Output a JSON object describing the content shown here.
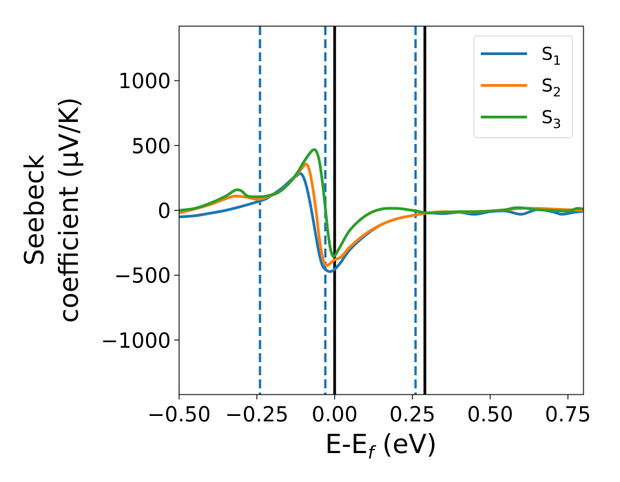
{
  "chart_data": {
    "type": "line",
    "xlabel": {
      "main": "E-E",
      "sub": "f",
      "unit": " (eV)"
    },
    "ylabel": {
      "line1": "Seebeck",
      "line2": "coefficient  (μV/K)"
    },
    "xlim": [
      -0.5,
      0.8
    ],
    "ylim": [
      -1420,
      1420
    ],
    "x_ticks": [
      -0.5,
      -0.25,
      0.0,
      0.25,
      0.5,
      0.75
    ],
    "x_tick_labels": [
      "−0.50",
      "−0.25",
      "0.00",
      "0.25",
      "0.50",
      "0.75"
    ],
    "y_ticks": [
      -1000,
      -500,
      0,
      500,
      1000
    ],
    "y_tick_labels": [
      "−1000",
      "−500",
      "0",
      "500",
      "1000"
    ],
    "grid": false,
    "legend_position": "top-right",
    "vlines": [
      {
        "x": -0.24,
        "style": "dashed",
        "color": "#1f77b4"
      },
      {
        "x": -0.03,
        "style": "dashed",
        "color": "#1f77b4"
      },
      {
        "x": 0.26,
        "style": "dashed",
        "color": "#1f77b4"
      },
      {
        "x": 0.0,
        "style": "solid",
        "color": "#000000"
      },
      {
        "x": 0.29,
        "style": "solid",
        "color": "#000000"
      }
    ],
    "series": [
      {
        "name": "S",
        "sub": "1",
        "color": "#1f77b4",
        "points": [
          [
            -0.5,
            -50
          ],
          [
            -0.45,
            -42
          ],
          [
            -0.4,
            -22
          ],
          [
            -0.35,
            0
          ],
          [
            -0.3,
            30
          ],
          [
            -0.25,
            65
          ],
          [
            -0.22,
            90
          ],
          [
            -0.2,
            120
          ],
          [
            -0.17,
            170
          ],
          [
            -0.14,
            235
          ],
          [
            -0.12,
            270
          ],
          [
            -0.11,
            285
          ],
          [
            -0.1,
            255
          ],
          [
            -0.09,
            180
          ],
          [
            -0.08,
            70
          ],
          [
            -0.07,
            -60
          ],
          [
            -0.06,
            -200
          ],
          [
            -0.05,
            -330
          ],
          [
            -0.04,
            -420
          ],
          [
            -0.03,
            -455
          ],
          [
            -0.02,
            -470
          ],
          [
            -0.01,
            -470
          ],
          [
            0.0,
            -455
          ],
          [
            0.02,
            -400
          ],
          [
            0.05,
            -300
          ],
          [
            0.1,
            -190
          ],
          [
            0.15,
            -110
          ],
          [
            0.2,
            -65
          ],
          [
            0.25,
            -40
          ],
          [
            0.3,
            -20
          ],
          [
            0.35,
            -25
          ],
          [
            0.4,
            -15
          ],
          [
            0.45,
            -30
          ],
          [
            0.5,
            -10
          ],
          [
            0.55,
            -5
          ],
          [
            0.6,
            -30
          ],
          [
            0.65,
            5
          ],
          [
            0.7,
            -10
          ],
          [
            0.73,
            -30
          ],
          [
            0.77,
            -15
          ],
          [
            0.8,
            -5
          ]
        ]
      },
      {
        "name": "S",
        "sub": "2",
        "color": "#ff7f0e",
        "points": [
          [
            -0.5,
            -20
          ],
          [
            -0.45,
            10
          ],
          [
            -0.4,
            45
          ],
          [
            -0.35,
            90
          ],
          [
            -0.32,
            110
          ],
          [
            -0.28,
            100
          ],
          [
            -0.25,
            85
          ],
          [
            -0.22,
            100
          ],
          [
            -0.18,
            140
          ],
          [
            -0.15,
            200
          ],
          [
            -0.12,
            280
          ],
          [
            -0.1,
            340
          ],
          [
            -0.09,
            355
          ],
          [
            -0.08,
            300
          ],
          [
            -0.07,
            170
          ],
          [
            -0.06,
            0
          ],
          [
            -0.05,
            -200
          ],
          [
            -0.04,
            -350
          ],
          [
            -0.03,
            -420
          ],
          [
            -0.02,
            -420
          ],
          [
            -0.01,
            -400
          ],
          [
            0.0,
            -380
          ],
          [
            0.02,
            -360
          ],
          [
            0.05,
            -280
          ],
          [
            0.1,
            -180
          ],
          [
            0.15,
            -110
          ],
          [
            0.2,
            -65
          ],
          [
            0.25,
            -40
          ],
          [
            0.3,
            -20
          ],
          [
            0.35,
            -10
          ],
          [
            0.4,
            -15
          ],
          [
            0.45,
            -10
          ],
          [
            0.5,
            -5
          ],
          [
            0.55,
            5
          ],
          [
            0.6,
            15
          ],
          [
            0.65,
            15
          ],
          [
            0.7,
            10
          ],
          [
            0.75,
            5
          ],
          [
            0.8,
            0
          ]
        ]
      },
      {
        "name": "S",
        "sub": "3",
        "color": "#2ca02c",
        "points": [
          [
            -0.5,
            0
          ],
          [
            -0.45,
            15
          ],
          [
            -0.4,
            55
          ],
          [
            -0.35,
            110
          ],
          [
            -0.32,
            155
          ],
          [
            -0.3,
            150
          ],
          [
            -0.28,
            110
          ],
          [
            -0.25,
            105
          ],
          [
            -0.22,
            110
          ],
          [
            -0.18,
            140
          ],
          [
            -0.15,
            200
          ],
          [
            -0.12,
            290
          ],
          [
            -0.1,
            370
          ],
          [
            -0.08,
            440
          ],
          [
            -0.07,
            465
          ],
          [
            -0.06,
            460
          ],
          [
            -0.05,
            390
          ],
          [
            -0.04,
            230
          ],
          [
            -0.03,
            20
          ],
          [
            -0.02,
            -200
          ],
          [
            -0.01,
            -330
          ],
          [
            0.0,
            -350
          ],
          [
            0.02,
            -270
          ],
          [
            0.05,
            -150
          ],
          [
            0.1,
            -40
          ],
          [
            0.15,
            10
          ],
          [
            0.2,
            15
          ],
          [
            0.25,
            0
          ],
          [
            0.3,
            -20
          ],
          [
            0.35,
            -15
          ],
          [
            0.4,
            -10
          ],
          [
            0.45,
            -10
          ],
          [
            0.5,
            -5
          ],
          [
            0.55,
            5
          ],
          [
            0.58,
            20
          ],
          [
            0.62,
            15
          ],
          [
            0.65,
            5
          ],
          [
            0.7,
            0
          ],
          [
            0.75,
            -5
          ],
          [
            0.78,
            15
          ],
          [
            0.8,
            10
          ]
        ]
      }
    ]
  }
}
